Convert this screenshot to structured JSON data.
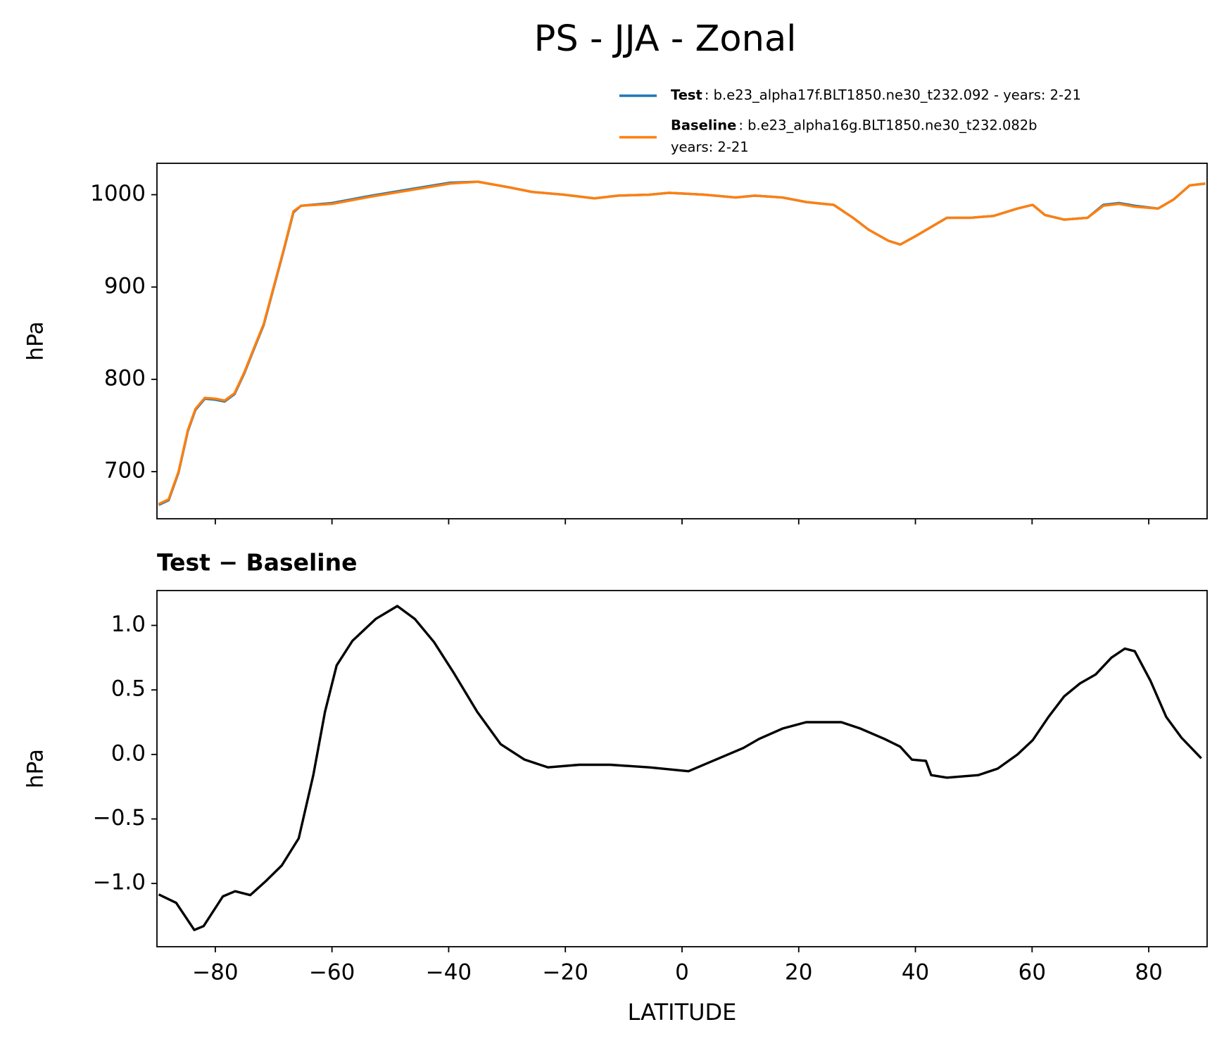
{
  "chart_data": [
    {
      "type": "line",
      "title": "PS - JJA - Zonal",
      "ylabel": "hPa",
      "x": [
        -89.7,
        -88,
        -86.3,
        -84.7,
        -83.4,
        -81.8,
        -80,
        -78.4,
        -76.7,
        -75,
        -73.3,
        -71.7,
        -70,
        -68.3,
        -66.6,
        -65.3,
        -60,
        -53.2,
        -46.5,
        -39.8,
        -35,
        -29.7,
        -25.7,
        -20.3,
        -15,
        -11,
        -5.6,
        -2.2,
        3.8,
        9.2,
        12.5,
        17.2,
        21.3,
        26,
        29.3,
        32,
        35.4,
        37.4,
        40,
        42.7,
        45.4,
        49.4,
        53.4,
        57.5,
        60.1,
        62.2,
        65.5,
        69.5,
        72.2,
        74.9,
        77.6,
        81.6,
        84.3,
        87,
        89.7
      ],
      "series": [
        {
          "name": "Test",
          "label": [
            ": b.e23_alpha17f.BLT1850.ne30_t232.092 - years: 2-21"
          ],
          "color": "#1f77b4",
          "values": [
            664,
            669,
            699,
            744,
            767,
            779,
            778,
            776,
            784,
            807,
            834,
            859,
            899,
            939,
            981,
            988,
            991,
            999,
            1006,
            1013,
            1014,
            1008,
            1003,
            1000,
            996,
            999,
            1000,
            1002,
            1000,
            997,
            999,
            997,
            992,
            989,
            975,
            962,
            950,
            946,
            955,
            965,
            975,
            975,
            977,
            985,
            989,
            978,
            973,
            975,
            989,
            991,
            988,
            985,
            995,
            1010,
            1012
          ]
        },
        {
          "name": "Baseline",
          "label": [
            ": b.e23_alpha16g.BLT1850.ne30_t232.082b",
            "years: 2-21"
          ],
          "color": "#ff7f0e",
          "values": [
            665,
            670,
            700,
            745,
            768,
            780,
            779,
            777,
            785,
            808,
            835,
            860,
            900,
            940,
            982,
            988,
            990,
            998,
            1005,
            1012,
            1014,
            1008,
            1003,
            1000,
            996,
            999,
            1000,
            1002,
            1000,
            997,
            999,
            997,
            992,
            989,
            975,
            962,
            950,
            946,
            955,
            965,
            975,
            975,
            977,
            985,
            989,
            978,
            973,
            975,
            988,
            990,
            987,
            985,
            995,
            1010,
            1012
          ]
        }
      ],
      "xlim": [
        -90,
        90
      ],
      "xticks": [
        -80,
        -60,
        -40,
        -20,
        0,
        20,
        40,
        60,
        80
      ],
      "ylim": [
        649,
        1034
      ],
      "yticks": [
        700,
        800,
        900,
        1000
      ]
    },
    {
      "type": "line",
      "title": "Test − Baseline",
      "ylabel": "hPa",
      "xlabel": "LATITUDE",
      "color": "#000000",
      "x": [
        -89.7,
        -86.7,
        -83.6,
        -82,
        -78.7,
        -76.6,
        -74,
        -71.3,
        -68.6,
        -65.7,
        -63.2,
        -61.2,
        -59.2,
        -56.5,
        -52.5,
        -48.8,
        -45.8,
        -42.5,
        -39.1,
        -35.1,
        -31.1,
        -27,
        -23,
        -17.6,
        -12.3,
        -5.6,
        1.1,
        5.8,
        10.5,
        13.2,
        17.2,
        21.3,
        27.3,
        30.6,
        34.7,
        37.4,
        39.4,
        41.8,
        42.7,
        45.4,
        50.8,
        54.1,
        57.5,
        60.1,
        62.8,
        65.5,
        68.2,
        70.9,
        73.6,
        75.9,
        77.6,
        80.3,
        83,
        85.6,
        89
      ],
      "values": [
        -1.085,
        -1.15,
        -1.36,
        -1.33,
        -1.1,
        -1.06,
        -1.09,
        -0.98,
        -0.86,
        -0.65,
        -0.16,
        0.33,
        0.69,
        0.88,
        1.05,
        1.15,
        1.05,
        0.87,
        0.63,
        0.33,
        0.08,
        -0.04,
        -0.1,
        -0.08,
        -0.08,
        -0.1,
        -0.13,
        -0.04,
        0.05,
        0.12,
        0.2,
        0.25,
        0.25,
        0.2,
        0.12,
        0.06,
        -0.04,
        -0.05,
        -0.16,
        -0.18,
        -0.16,
        -0.11,
        0.0,
        0.11,
        0.29,
        0.45,
        0.55,
        0.62,
        0.75,
        0.82,
        0.8,
        0.57,
        0.29,
        0.13,
        -0.03
      ],
      "xlim": [
        -90,
        90
      ],
      "xticks": [
        {
          "value": -80,
          "label": "−80"
        },
        {
          "value": -60,
          "label": "−60"
        },
        {
          "value": -40,
          "label": "−40"
        },
        {
          "value": -20,
          "label": "−20"
        },
        0,
        20,
        40,
        60,
        80
      ],
      "ylim": [
        -1.49,
        1.27
      ],
      "yticks": [
        {
          "value": -1,
          "label": "−1.0"
        },
        {
          "value": -0.5,
          "label": "−0.5"
        },
        {
          "value": 0,
          "label": "0.0"
        },
        0.5,
        {
          "value": 1,
          "label": "1.0"
        }
      ]
    }
  ]
}
